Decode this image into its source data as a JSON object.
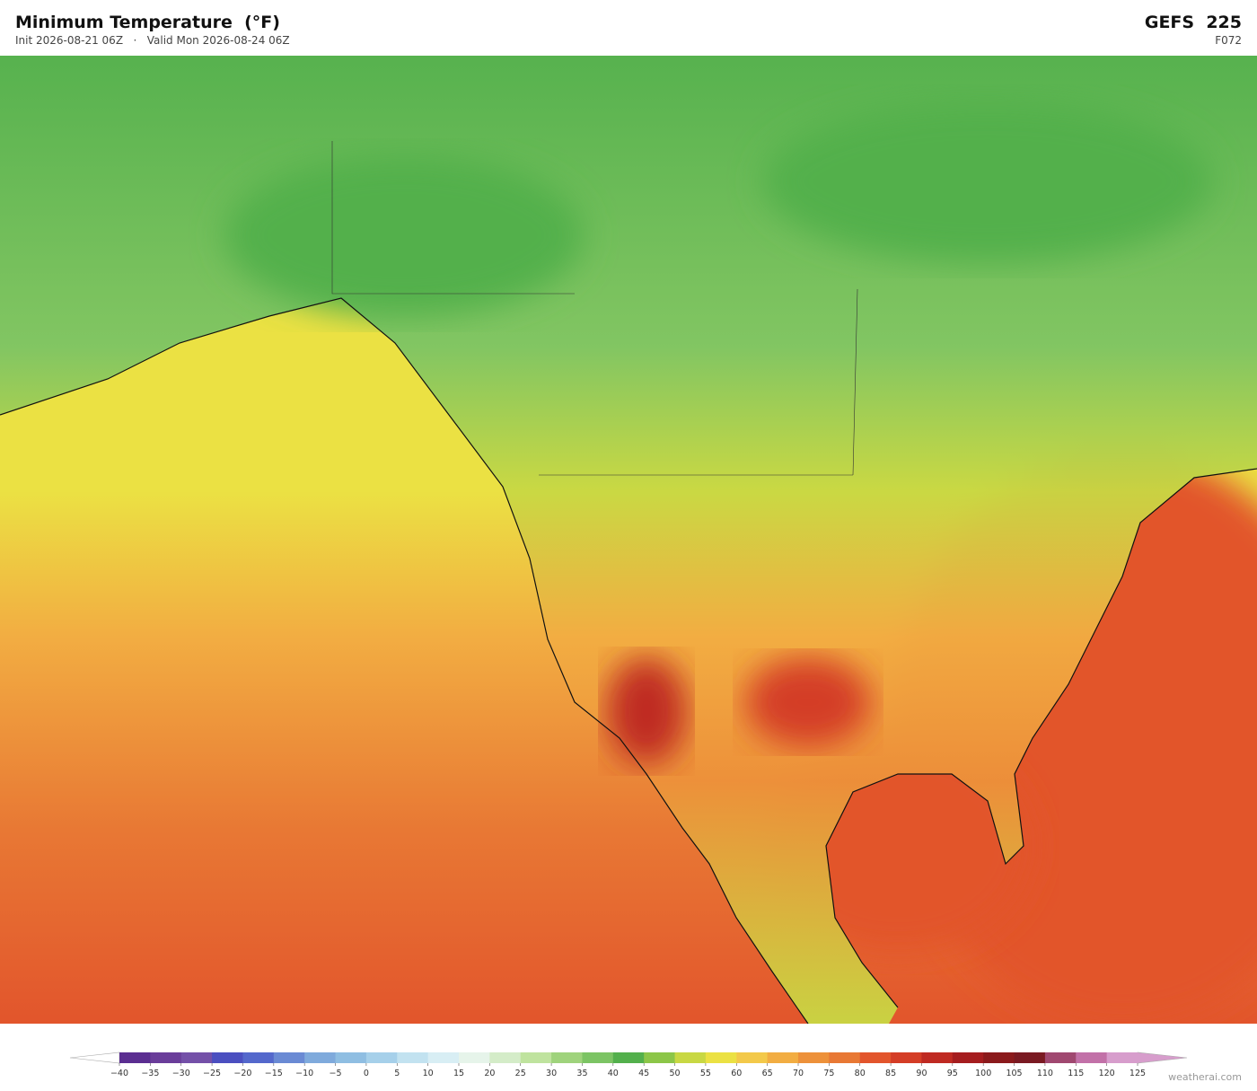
{
  "header": {
    "title": "Minimum Temperature  (°F)",
    "subtitle": "Init 2026-08-21 06Z   ·   Valid Mon 2026-08-24 06Z",
    "model": "GEFS  225",
    "forecast_hour": "F072"
  },
  "colorbar": {
    "ticks": [
      {
        "value": -40,
        "label": "−40"
      },
      {
        "value": -35,
        "label": "−35"
      },
      {
        "value": -30,
        "label": "−30"
      },
      {
        "value": -25,
        "label": "−25"
      },
      {
        "value": -20,
        "label": "−20"
      },
      {
        "value": -15,
        "label": "−15"
      },
      {
        "value": -10,
        "label": "−10"
      },
      {
        "value": -5,
        "label": "−5"
      },
      0,
      5,
      10,
      15,
      20,
      25,
      30,
      35,
      40,
      45,
      50,
      55,
      60,
      65,
      70,
      75,
      80,
      85,
      90,
      95,
      100,
      105,
      110,
      115,
      120,
      125
    ],
    "colors": [
      "#5b2e91",
      "#6a3d9a",
      "#7450a8",
      "#4b4fc0",
      "#5468cc",
      "#6a8ad4",
      "#7faadc",
      "#8fbee2",
      "#a6d0ea",
      "#c2e2f0",
      "#d8eef4",
      "#e6f4ea",
      "#d4ecc8",
      "#bfe39e",
      "#9fd37c",
      "#7cc464",
      "#53b04c",
      "#8cc648",
      "#c8d843",
      "#ebe143",
      "#f3c94a",
      "#f2ad42",
      "#ed913a",
      "#e87834",
      "#e2552c",
      "#d43d26",
      "#bf2a22",
      "#a51d1f",
      "#8b1a1c",
      "#7a1a22",
      "#a04870",
      "#c271a8",
      "#d79dcc"
    ],
    "under_color": "#ffffff",
    "over_color": "#d79dcc"
  },
  "footer": {
    "watermark": "weatherai.com"
  }
}
